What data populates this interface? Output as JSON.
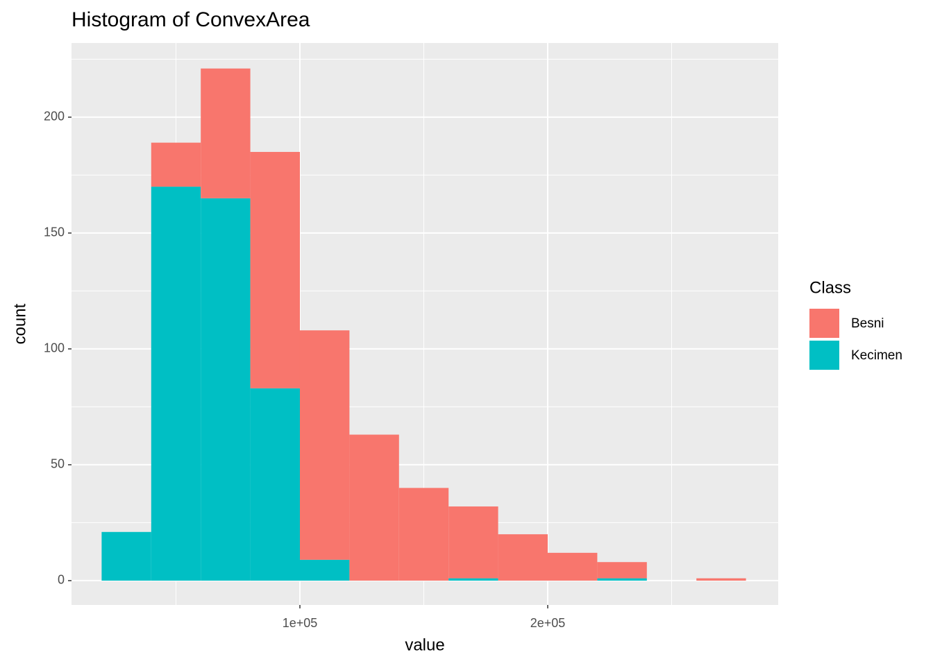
{
  "chart_data": {
    "type": "histogram",
    "title": "Histogram of ConvexArea",
    "x_label": "value",
    "y_label": "count",
    "legend_title": "Class",
    "bins": [
      20000,
      40000,
      60000,
      80000,
      100000,
      120000,
      140000,
      160000,
      180000,
      200000,
      220000,
      240000,
      260000,
      280000
    ],
    "series": [
      {
        "name": "Besni",
        "color": "#f8766d",
        "values": [
          0,
          19,
          56,
          102,
          99,
          63,
          40,
          31,
          20,
          12,
          7,
          0,
          1
        ]
      },
      {
        "name": "Kecimen",
        "color": "#00bfc4",
        "values": [
          21,
          170,
          165,
          83,
          9,
          0,
          0,
          1,
          0,
          0,
          1,
          0,
          0
        ]
      }
    ],
    "stacked": true,
    "xlim": [
      7843,
      293000
    ],
    "ylim": [
      -10.5,
      232
    ],
    "xticks": [
      {
        "value": 100000,
        "label": "1e+05"
      },
      {
        "value": 200000,
        "label": "2e+05"
      }
    ],
    "yticks": [
      0,
      50,
      100,
      150,
      200
    ],
    "grid": true,
    "legend": "right"
  }
}
